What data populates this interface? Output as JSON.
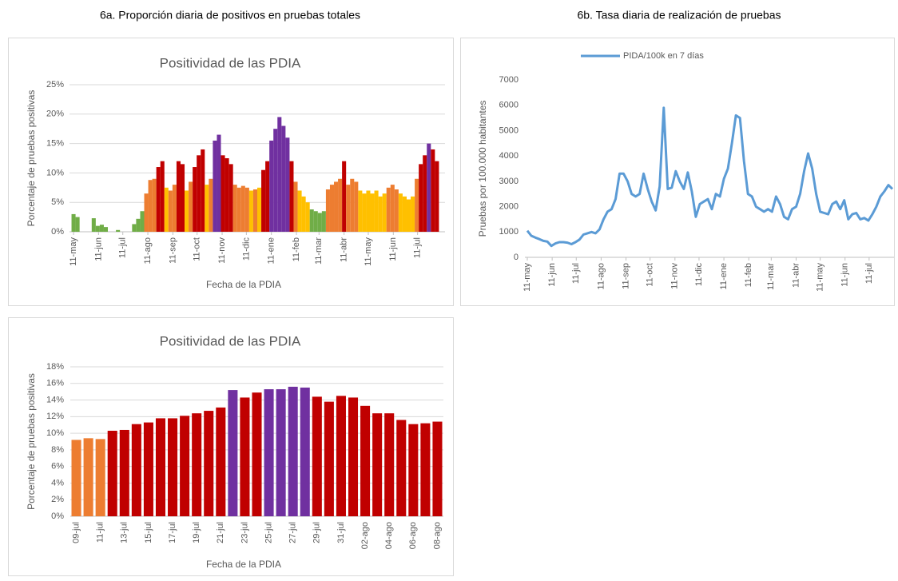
{
  "headings": {
    "a": "6a. Proporción diaria de positivos en pruebas totales",
    "b": "6b. Tasa diaria de realización de pruebas"
  },
  "chart_data": [
    {
      "type": "bar",
      "title": "Positividad de las PDIA",
      "x_label": "Fecha de la PDIA",
      "y_label": "Porcentaje de pruebas positivas",
      "x": [
        0,
        5,
        10,
        15,
        20,
        25,
        30,
        35,
        40,
        45,
        50,
        55,
        60,
        65,
        70,
        75,
        80,
        85,
        90,
        95,
        100,
        105,
        110,
        115,
        120,
        125,
        130,
        135,
        140,
        145,
        150,
        155,
        160,
        165,
        170,
        175,
        180,
        185,
        190,
        195,
        200,
        205,
        210,
        215,
        220,
        225,
        230,
        235,
        240,
        245,
        250,
        255,
        260,
        265,
        270,
        275,
        280,
        285,
        290,
        295,
        300,
        305,
        310,
        315,
        320,
        325,
        330,
        335,
        340,
        345,
        350,
        355,
        360,
        365,
        370,
        375,
        380,
        385,
        390,
        395,
        400,
        405,
        410,
        415,
        420,
        425,
        430,
        435,
        440,
        445,
        450
      ],
      "values": [
        3.0,
        2.5,
        null,
        null,
        null,
        2.3,
        1.0,
        1.2,
        0.8,
        null,
        null,
        0.3,
        null,
        null,
        null,
        1.3,
        2.2,
        3.5,
        6.5,
        8.8,
        9,
        11,
        12,
        7.5,
        7,
        8,
        12,
        11.5,
        7,
        8.5,
        11,
        13,
        14,
        8,
        9,
        15.5,
        16.5,
        13,
        12.5,
        11.5,
        8,
        7.5,
        7.8,
        7.5,
        7,
        7.2,
        7.5,
        10.5,
        12,
        15.5,
        17.5,
        19.5,
        18,
        16,
        12,
        8.5,
        7,
        6,
        5,
        3.8,
        3.5,
        3.2,
        3.5,
        7.2,
        8,
        8.5,
        9,
        12,
        8,
        9,
        8.5,
        7,
        6.5,
        7,
        6.5,
        7,
        6,
        6.5,
        7.5,
        8,
        7.2,
        6.5,
        6,
        5.5,
        6,
        9,
        11.5,
        13,
        15,
        14,
        12
      ],
      "colors": [
        "#70ad47",
        "#70ad47",
        null,
        null,
        null,
        "#70ad47",
        "#70ad47",
        "#70ad47",
        "#70ad47",
        null,
        null,
        "#70ad47",
        null,
        null,
        null,
        "#70ad47",
        "#70ad47",
        "#70ad47",
        "#ed7d31",
        "#ed7d31",
        "#ed7d31",
        "#c00000",
        "#c00000",
        "#ffc000",
        "#ed7d31",
        "#ed7d31",
        "#c00000",
        "#c00000",
        "#ffc000",
        "#ed7d31",
        "#c00000",
        "#c00000",
        "#c00000",
        "#ffc000",
        "#ed7d31",
        "#7030a0",
        "#7030a0",
        "#c00000",
        "#c00000",
        "#c00000",
        "#ed7d31",
        "#ed7d31",
        "#ed7d31",
        "#ed7d31",
        "#ffc000",
        "#ed7d31",
        "#ffc000",
        "#c00000",
        "#c00000",
        "#7030a0",
        "#7030a0",
        "#7030a0",
        "#7030a0",
        "#7030a0",
        "#c00000",
        "#ed7d31",
        "#ffc000",
        "#ffc000",
        "#ffc000",
        "#70ad47",
        "#70ad47",
        "#70ad47",
        "#70ad47",
        "#ed7d31",
        "#ed7d31",
        "#ed7d31",
        "#ed7d31",
        "#c00000",
        "#ed7d31",
        "#ed7d31",
        "#ed7d31",
        "#ffc000",
        "#ffc000",
        "#ffc000",
        "#ffc000",
        "#ffc000",
        "#ffc000",
        "#ffc000",
        "#ed7d31",
        "#ed7d31",
        "#ed7d31",
        "#ffc000",
        "#ffc000",
        "#ffc000",
        "#ffc000",
        "#ed7d31",
        "#c00000",
        "#c00000",
        "#7030a0",
        "#c00000",
        "#c00000"
      ],
      "xlim": [
        -5,
        460
      ],
      "xticks": [
        {
          "value": 0,
          "label": "11-may"
        },
        {
          "value": 31,
          "label": "11-jun"
        },
        {
          "value": 61,
          "label": "11-jul"
        },
        {
          "value": 92,
          "label": "11-ago"
        },
        {
          "value": 123,
          "label": "11-sep"
        },
        {
          "value": 153,
          "label": "11-oct"
        },
        {
          "value": 184,
          "label": "11-nov"
        },
        {
          "value": 214,
          "label": "11-dic"
        },
        {
          "value": 245,
          "label": "11-ene"
        },
        {
          "value": 276,
          "label": "11-feb"
        },
        {
          "value": 304,
          "label": "11-mar"
        },
        {
          "value": 335,
          "label": "11-abr"
        },
        {
          "value": 365,
          "label": "11-may"
        },
        {
          "value": 396,
          "label": "11-jun"
        },
        {
          "value": 426,
          "label": "11-jul"
        }
      ],
      "ylim": [
        0,
        25
      ],
      "yticks": [
        {
          "value": 0,
          "label": "0%"
        },
        {
          "value": 5,
          "label": "5%"
        },
        {
          "value": 10,
          "label": "10%"
        },
        {
          "value": 15,
          "label": "15%"
        },
        {
          "value": 20,
          "label": "20%"
        },
        {
          "value": 25,
          "label": "25%"
        }
      ],
      "grid": true
    },
    {
      "type": "line",
      "y_label": "Pruebas por 100.000 habitantes",
      "legend": "top",
      "x": [
        0,
        5,
        10,
        15,
        20,
        25,
        30,
        35,
        40,
        45,
        50,
        55,
        60,
        65,
        70,
        75,
        80,
        85,
        90,
        95,
        100,
        105,
        110,
        115,
        120,
        125,
        130,
        135,
        140,
        145,
        150,
        155,
        160,
        165,
        170,
        175,
        180,
        185,
        190,
        195,
        200,
        205,
        210,
        215,
        220,
        225,
        230,
        235,
        240,
        245,
        250,
        255,
        260,
        265,
        270,
        275,
        280,
        285,
        290,
        295,
        300,
        305,
        310,
        315,
        320,
        325,
        330,
        335,
        340,
        345,
        350,
        355,
        360,
        365,
        370,
        375,
        380,
        385,
        390,
        395,
        400,
        405,
        410,
        415,
        420,
        425,
        430,
        435,
        440,
        445,
        450,
        455
      ],
      "series": [
        {
          "name": "PIDA/100k en 7 días",
          "color": "#5b9bd5",
          "values": [
            1050,
            850,
            780,
            720,
            650,
            620,
            450,
            550,
            600,
            600,
            580,
            520,
            600,
            700,
            900,
            950,
            1000,
            950,
            1100,
            1500,
            1800,
            1900,
            2300,
            3300,
            3300,
            3000,
            2500,
            2400,
            2500,
            3300,
            2700,
            2200,
            1850,
            2800,
            5900,
            2700,
            2750,
            3400,
            3000,
            2700,
            3350,
            2600,
            1600,
            2100,
            2200,
            2300,
            1900,
            2500,
            2400,
            3100,
            3500,
            4500,
            5600,
            5500,
            3800,
            2500,
            2400,
            2000,
            1900,
            1800,
            1900,
            1800,
            2400,
            2100,
            1600,
            1500,
            1900,
            2000,
            2500,
            3400,
            4100,
            3500,
            2500,
            1800,
            1750,
            1700,
            2100,
            2200,
            1900,
            2250,
            1500,
            1700,
            1750,
            1500,
            1550,
            1450,
            1700,
            2000,
            2400,
            2600,
            2850,
            2700
          ]
        }
      ],
      "xlim": [
        -3,
        457
      ],
      "xticks": [
        {
          "value": 0,
          "label": "11-may"
        },
        {
          "value": 31,
          "label": "11-jun"
        },
        {
          "value": 61,
          "label": "11-jul"
        },
        {
          "value": 92,
          "label": "11-ago"
        },
        {
          "value": 123,
          "label": "11-sep"
        },
        {
          "value": 153,
          "label": "11-oct"
        },
        {
          "value": 184,
          "label": "11-nov"
        },
        {
          "value": 214,
          "label": "11-dic"
        },
        {
          "value": 245,
          "label": "11-ene"
        },
        {
          "value": 276,
          "label": "11-feb"
        },
        {
          "value": 304,
          "label": "11-mar"
        },
        {
          "value": 335,
          "label": "11-abr"
        },
        {
          "value": 365,
          "label": "11-may"
        },
        {
          "value": 396,
          "label": "11-jun"
        },
        {
          "value": 426,
          "label": "11-jul"
        }
      ],
      "ylim": [
        0,
        7000
      ],
      "yticks": [
        0,
        1000,
        2000,
        3000,
        4000,
        5000,
        6000,
        7000
      ],
      "grid": false
    },
    {
      "type": "bar",
      "title": "Positividad de las PDIA",
      "x_label": "Fecha de la PDIA",
      "y_label": "Porcentaje de pruebas positivas",
      "categories": [
        "09-jul",
        null,
        "11-jul",
        null,
        "13-jul",
        null,
        "15-jul",
        null,
        "17-jul",
        null,
        "19-jul",
        null,
        "21-jul",
        null,
        "23-jul",
        null,
        "25-jul",
        null,
        "27-jul",
        null,
        "29-jul",
        null,
        "31-jul",
        null,
        "02-ago",
        null,
        "04-ago",
        null,
        "06-ago",
        null,
        "08-ago"
      ],
      "values": [
        9.2,
        9.4,
        9.3,
        10.3,
        10.4,
        11.1,
        11.3,
        11.8,
        11.8,
        12.1,
        12.4,
        12.7,
        13.1,
        15.2,
        14.3,
        14.9,
        15.3,
        15.3,
        15.6,
        15.5,
        14.4,
        13.8,
        14.5,
        14.3,
        13.3,
        12.4,
        12.4,
        11.6,
        11.1,
        11.2,
        11.4
      ],
      "colors": [
        "#ed7d31",
        "#ed7d31",
        "#ed7d31",
        "#c00000",
        "#c00000",
        "#c00000",
        "#c00000",
        "#c00000",
        "#c00000",
        "#c00000",
        "#c00000",
        "#c00000",
        "#c00000",
        "#7030a0",
        "#c00000",
        "#c00000",
        "#7030a0",
        "#7030a0",
        "#7030a0",
        "#7030a0",
        "#c00000",
        "#c00000",
        "#c00000",
        "#c00000",
        "#c00000",
        "#c00000",
        "#c00000",
        "#c00000",
        "#c00000",
        "#c00000",
        "#c00000"
      ],
      "ylim": [
        0,
        18
      ],
      "yticks": [
        {
          "value": 0,
          "label": "0%"
        },
        {
          "value": 2,
          "label": "2%"
        },
        {
          "value": 4,
          "label": "4%"
        },
        {
          "value": 6,
          "label": "6%"
        },
        {
          "value": 8,
          "label": "8%"
        },
        {
          "value": 10,
          "label": "10%"
        },
        {
          "value": 12,
          "label": "12%"
        },
        {
          "value": 14,
          "label": "14%"
        },
        {
          "value": 16,
          "label": "16%"
        },
        {
          "value": 18,
          "label": "18%"
        }
      ],
      "grid": true
    }
  ]
}
